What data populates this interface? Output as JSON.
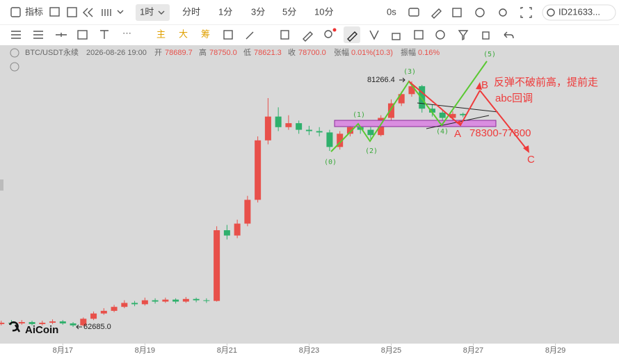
{
  "toolbar": {
    "indicator": "指标",
    "interval": "1时",
    "intervals": [
      "分时",
      "1分",
      "3分",
      "5分",
      "10分"
    ],
    "countdown": "0s",
    "account": "ID21633...",
    "tools": [
      "主",
      "大",
      "筹"
    ]
  },
  "quote": {
    "symbol": "BTC/USDT永续",
    "time": "2026-08-26 19:00",
    "open_label": "开",
    "open": "78689.7",
    "high_label": "高",
    "high": "78750.0",
    "low_label": "低",
    "low": "78621.3",
    "close_label": "收",
    "close": "78700.0",
    "change_label": "张幅",
    "change": "0.01%(10.3)",
    "amp_label": "振幅",
    "amp": "0.16%"
  },
  "chart_data": {
    "type": "candlestick",
    "watermark": "AiCoin",
    "up_color": "#e8504a",
    "down_color": "#2fb06c",
    "xlim": [
      15.47,
      30.55
    ],
    "ylim": [
      61420,
      84000
    ],
    "xticks": [
      {
        "value": 17,
        "label": "8月17"
      },
      {
        "value": 19,
        "label": "8月19"
      },
      {
        "value": 21,
        "label": "8月21"
      },
      {
        "value": 23,
        "label": "8月23"
      },
      {
        "value": 25,
        "label": "8月25"
      },
      {
        "value": 27,
        "label": "8月27"
      },
      {
        "value": 29,
        "label": "8月29"
      }
    ],
    "candles": [
      [
        15.5,
        62900,
        63150,
        62800,
        63000
      ],
      [
        15.75,
        63000,
        63200,
        62850,
        62950
      ],
      [
        16,
        62950,
        63200,
        62850,
        63050
      ],
      [
        16.25,
        63050,
        63150,
        62800,
        62900
      ],
      [
        16.5,
        62900,
        63150,
        62800,
        63000
      ],
      [
        16.75,
        63000,
        63250,
        62900,
        63100
      ],
      [
        17,
        63100,
        63200,
        62850,
        62950
      ],
      [
        17.25,
        62950,
        63050,
        62685,
        62800
      ],
      [
        17.5,
        62800,
        63400,
        62750,
        63300
      ],
      [
        17.75,
        63300,
        63850,
        63200,
        63700
      ],
      [
        18,
        63700,
        64100,
        63600,
        63900
      ],
      [
        18.25,
        63900,
        64350,
        63800,
        64200
      ],
      [
        18.5,
        64200,
        64700,
        64100,
        64500
      ],
      [
        18.75,
        64500,
        64650,
        64250,
        64400
      ],
      [
        19,
        64400,
        64900,
        64300,
        64700
      ],
      [
        19.25,
        64700,
        64850,
        64450,
        64600
      ],
      [
        19.5,
        64600,
        64900,
        64500,
        64750
      ],
      [
        19.75,
        64750,
        64850,
        64450,
        64600
      ],
      [
        20,
        64600,
        64950,
        64500,
        64800
      ],
      [
        20.25,
        64800,
        64900,
        64550,
        64700
      ],
      [
        20.5,
        64700,
        64850,
        64500,
        64650
      ],
      [
        20.75,
        64650,
        70300,
        64600,
        70000
      ],
      [
        21,
        70000,
        70400,
        69300,
        69600
      ],
      [
        21.25,
        69600,
        70800,
        69400,
        70500
      ],
      [
        21.5,
        70500,
        72600,
        70300,
        72300
      ],
      [
        21.75,
        72300,
        77100,
        72100,
        76800
      ],
      [
        22,
        76800,
        80000,
        76500,
        78600
      ],
      [
        22.25,
        78600,
        79300,
        77500,
        77800
      ],
      [
        22.5,
        77800,
        78700,
        77600,
        78100
      ],
      [
        22.75,
        78100,
        78300,
        77300,
        77600
      ],
      [
        23,
        77600,
        77900,
        77200,
        77500
      ],
      [
        23.25,
        77500,
        77800,
        77100,
        77400
      ],
      [
        23.5,
        77400,
        77600,
        76000,
        76300
      ],
      [
        23.75,
        76300,
        77500,
        76100,
        77300
      ],
      [
        24,
        77300,
        78100,
        77100,
        77800
      ],
      [
        24.25,
        77800,
        78000,
        77300,
        77600
      ],
      [
        24.5,
        77600,
        77800,
        76900,
        77200
      ],
      [
        24.75,
        77200,
        78700,
        77100,
        78500
      ],
      [
        25,
        78500,
        79900,
        78300,
        79600
      ],
      [
        25.25,
        79600,
        80500,
        79400,
        80300
      ],
      [
        25.5,
        80300,
        81266.4,
        80100,
        80900
      ],
      [
        25.75,
        80900,
        81000,
        78900,
        79200
      ],
      [
        26,
        79200,
        79500,
        78600,
        78900
      ],
      [
        26.25,
        78900,
        79100,
        78200,
        78500
      ],
      [
        26.5,
        78500,
        79000,
        78300,
        78800
      ],
      [
        26.75,
        78800,
        78900,
        78550,
        78700
      ]
    ],
    "high_marker": "81266.4",
    "low_marker": "62685.0",
    "annotations": {
      "wave": [
        "(0)",
        "(1)",
        "(2)",
        "(3)",
        "(4)",
        "(5)"
      ],
      "a": "A",
      "b": "B",
      "c": "C",
      "zone": "78300-77800",
      "note1": "反弹不破前高，提前走",
      "note2": "abc回调"
    }
  }
}
